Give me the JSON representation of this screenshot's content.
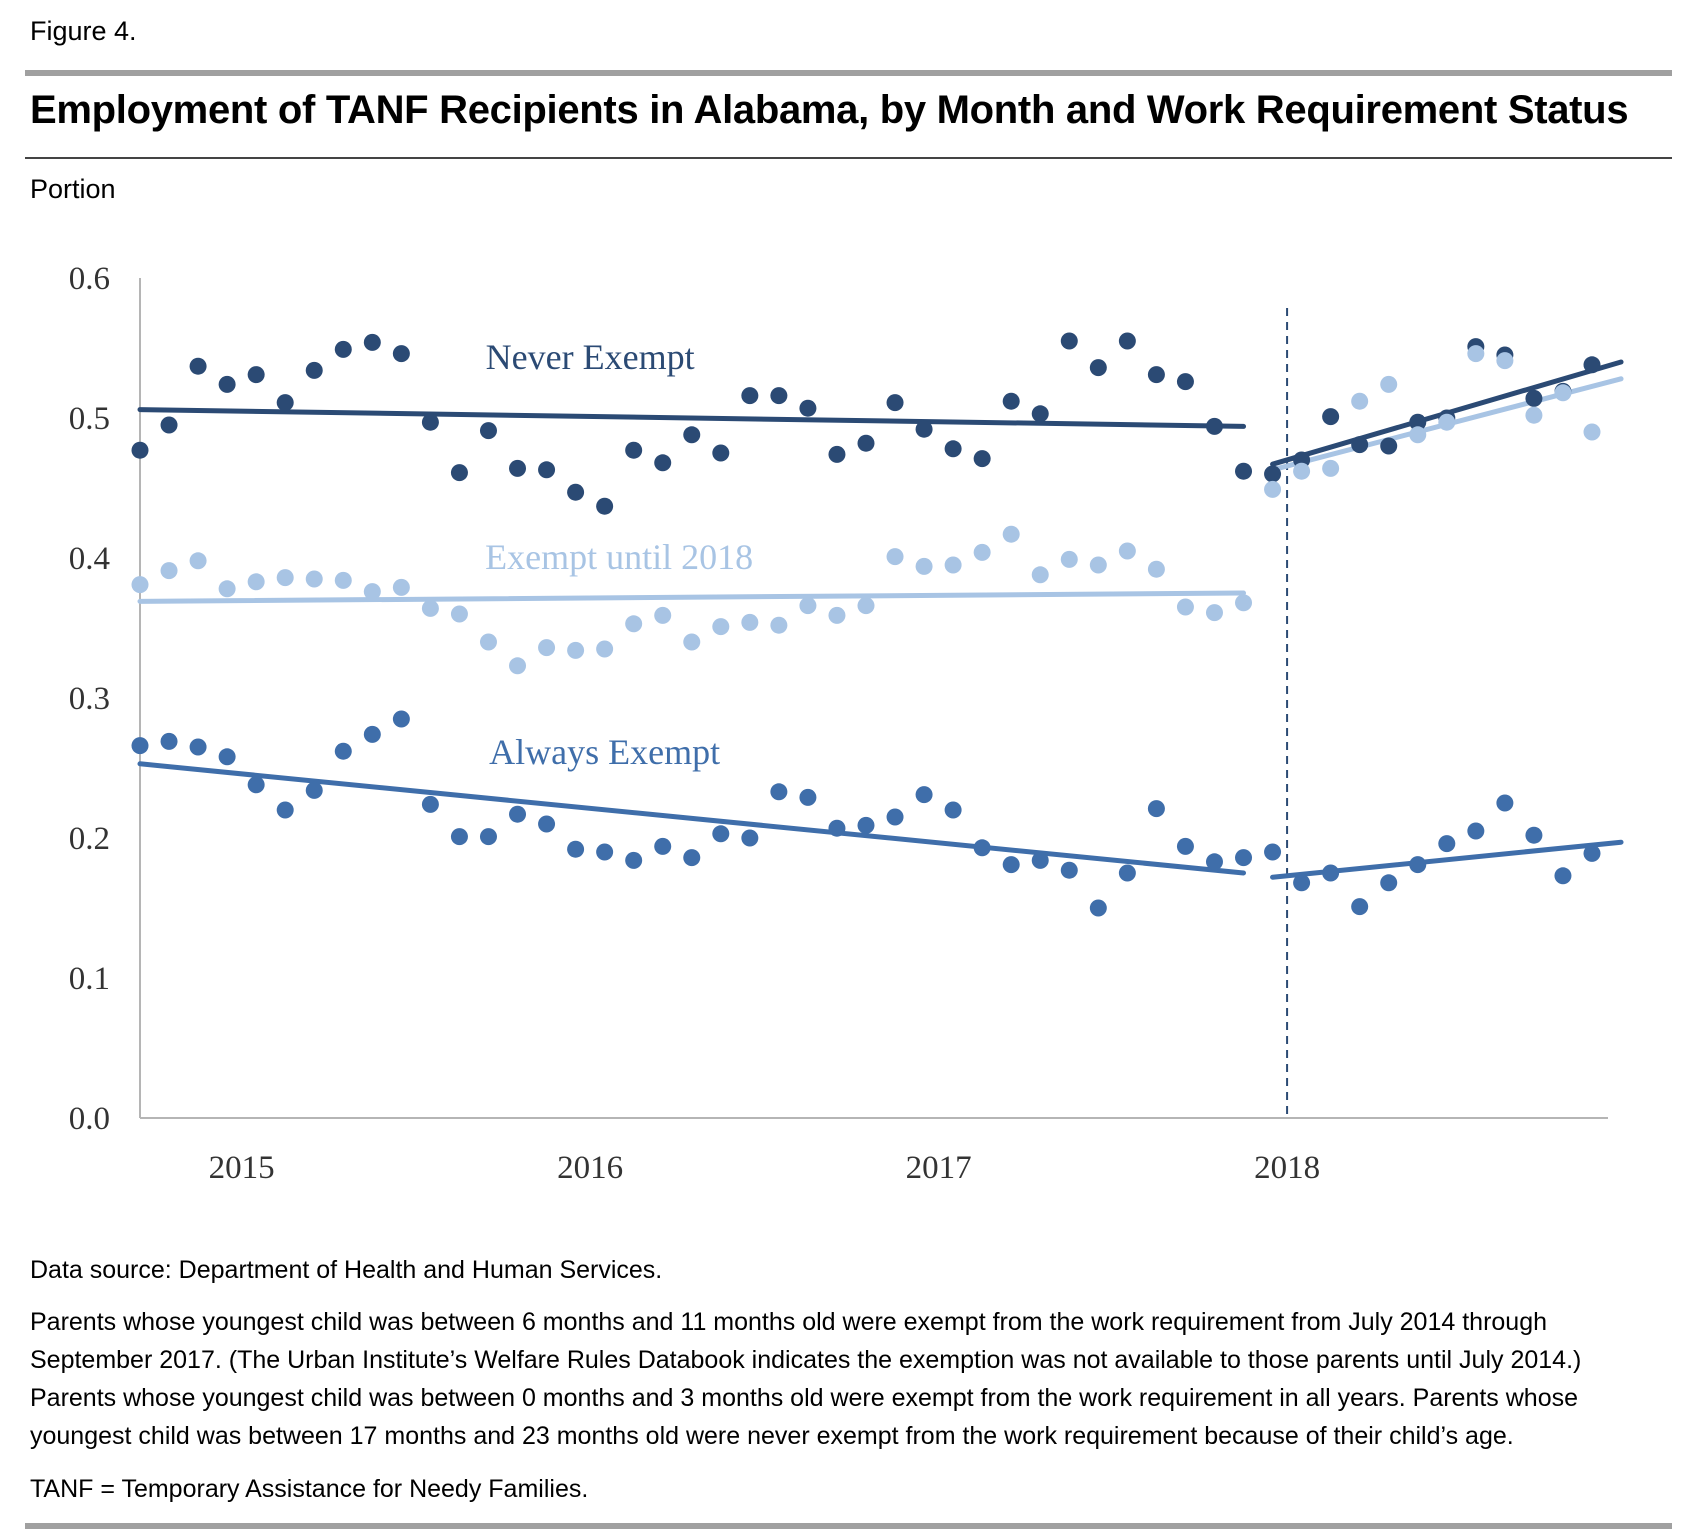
{
  "figure_label": "Figure 4.",
  "title": "Employment of TANF Recipients in Alabama, by Month and Work Requirement Status",
  "units_label": "Portion",
  "colors": {
    "never_exempt": "#2b4a74",
    "exempt_until_2018": "#a8c4e4",
    "always_exempt": "#3f6eaa",
    "axis": "#b5b5b5",
    "divider": "#2b4a74"
  },
  "chart_data": {
    "type": "scatter",
    "ylabel": "Portion",
    "ylim": [
      0,
      0.6
    ],
    "y_ticks": [
      "0.0",
      "0.1",
      "0.2",
      "0.3",
      "0.4",
      "0.5",
      "0.6"
    ],
    "x_ticks": [
      {
        "label": "2015",
        "month": 3.5
      },
      {
        "label": "2016",
        "month": 15.5
      },
      {
        "label": "2017",
        "month": 27.5
      },
      {
        "label": "2018",
        "month": 39.5
      }
    ],
    "divider_month": 39.5,
    "series": [
      {
        "name": "Never Exempt",
        "color_key": "never_exempt",
        "label_month": 15.5,
        "label_y": 0.535,
        "values": [
          0.477,
          0.495,
          0.537,
          0.524,
          0.531,
          0.511,
          0.534,
          0.549,
          0.554,
          0.546,
          0.497,
          0.461,
          0.491,
          0.464,
          0.463,
          0.447,
          0.437,
          0.477,
          0.468,
          0.488,
          0.475,
          0.516,
          0.516,
          0.507,
          0.474,
          0.482,
          0.511,
          0.492,
          0.478,
          0.471,
          0.512,
          0.503,
          0.555,
          0.536,
          0.555,
          0.531,
          0.526,
          0.494,
          0.462,
          0.46,
          0.47,
          0.501,
          0.481,
          0.48,
          0.497,
          0.5,
          0.551,
          0.545,
          0.514,
          0.519,
          0.538
        ],
        "trend_pre": [
          [
            0,
            0.506
          ],
          [
            38,
            0.494
          ]
        ],
        "trend_post": [
          [
            39,
            0.467
          ],
          [
            51,
            0.54
          ]
        ]
      },
      {
        "name": "Exempt until 2018",
        "color_key": "exempt_until_2018",
        "label_month": 16.5,
        "label_y": 0.392,
        "values": [
          0.381,
          0.391,
          0.398,
          0.378,
          0.383,
          0.386,
          0.385,
          0.384,
          0.376,
          0.379,
          0.364,
          0.36,
          0.34,
          0.323,
          0.336,
          0.334,
          0.335,
          0.353,
          0.359,
          0.34,
          0.351,
          0.354,
          0.352,
          0.366,
          0.359,
          0.366,
          0.401,
          0.394,
          0.395,
          0.404,
          0.417,
          0.388,
          0.399,
          0.395,
          0.405,
          0.392,
          0.365,
          0.361,
          0.368,
          0.449,
          0.462,
          0.464,
          0.512,
          0.524,
          0.488,
          0.497,
          0.546,
          0.541,
          0.502,
          0.518,
          0.49
        ],
        "trend_pre": [
          [
            0,
            0.369
          ],
          [
            38,
            0.375
          ]
        ],
        "trend_post": [
          [
            39,
            0.463
          ],
          [
            51,
            0.528
          ]
        ]
      },
      {
        "name": "Always Exempt",
        "color_key": "always_exempt",
        "label_month": 16,
        "label_y": 0.253,
        "values": [
          0.266,
          0.269,
          0.265,
          0.258,
          0.238,
          0.22,
          0.234,
          0.262,
          0.274,
          0.285,
          0.224,
          0.201,
          0.201,
          0.217,
          0.21,
          0.192,
          0.19,
          0.184,
          0.194,
          0.186,
          0.203,
          0.2,
          0.233,
          0.229,
          0.207,
          0.209,
          0.215,
          0.231,
          0.22,
          0.193,
          0.181,
          0.184,
          0.177,
          0.15,
          0.175,
          0.221,
          0.194,
          0.183,
          0.186,
          0.19,
          0.168,
          0.175,
          0.151,
          0.168,
          0.181,
          0.196,
          0.205,
          0.225,
          0.202,
          0.173,
          0.189
        ],
        "trend_pre": [
          [
            0,
            0.253
          ],
          [
            38,
            0.175
          ]
        ],
        "trend_post": [
          [
            39,
            0.172
          ],
          [
            51,
            0.197
          ]
        ]
      }
    ]
  },
  "footnotes": {
    "source": "Data source: Department of Health and Human Services.",
    "note": "Parents whose youngest child was between 6 months and 11 months old were exempt from the work requirement from July 2014 through September 2017. (The Urban Institute’s Welfare Rules Databook indicates the exemption was not available to those parents until July 2014.) Parents whose youngest child was between 0 months and 3 months old were exempt from the work requirement in all years. Parents whose youngest child was between 17 months and 23 months old were never exempt from the work requirement because of their child’s age.",
    "abbreviation": "TANF = Temporary Assistance for Needy Families."
  }
}
